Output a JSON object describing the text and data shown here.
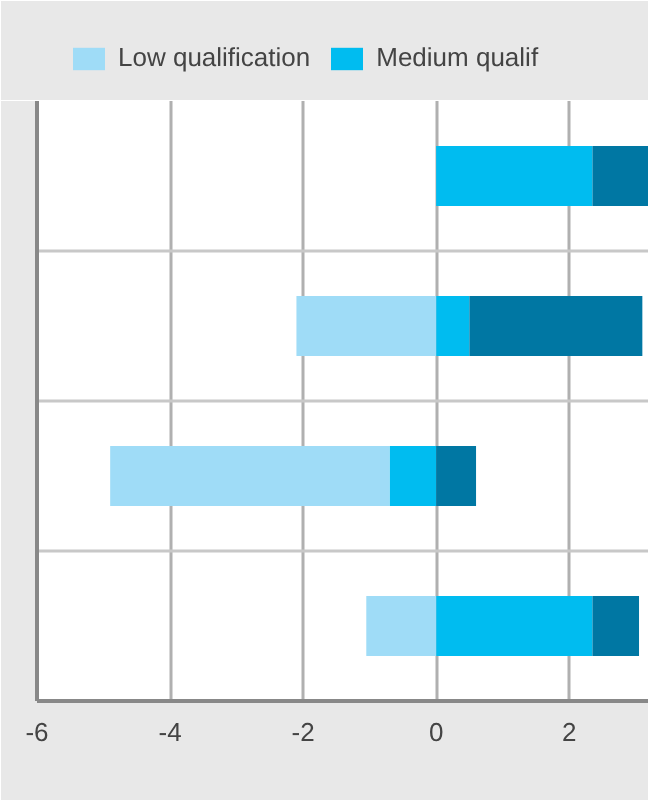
{
  "chart_data": {
    "type": "bar",
    "orientation": "horizontal",
    "stacked": true,
    "categories": [
      null,
      null,
      null,
      null
    ],
    "series": [
      {
        "name": "Medium qualif",
        "color": "#00bcf0",
        "values": [
          2.35,
          0.5,
          -0.7,
          2.35
        ]
      },
      {
        "color": "#0077a3",
        "values": [
          0.85,
          2.6,
          0.6,
          0.7
        ]
      },
      {
        "name": "Low qualification",
        "color": "#9fdcf7",
        "values": [
          null,
          -2.1,
          -4.2,
          -1.05
        ]
      }
    ],
    "xlim": [
      -6,
      3.2
    ],
    "xticks": [
      -6,
      -4,
      -2,
      0,
      2
    ],
    "grid": true,
    "legend": "top",
    "tick_labels": "x"
  }
}
